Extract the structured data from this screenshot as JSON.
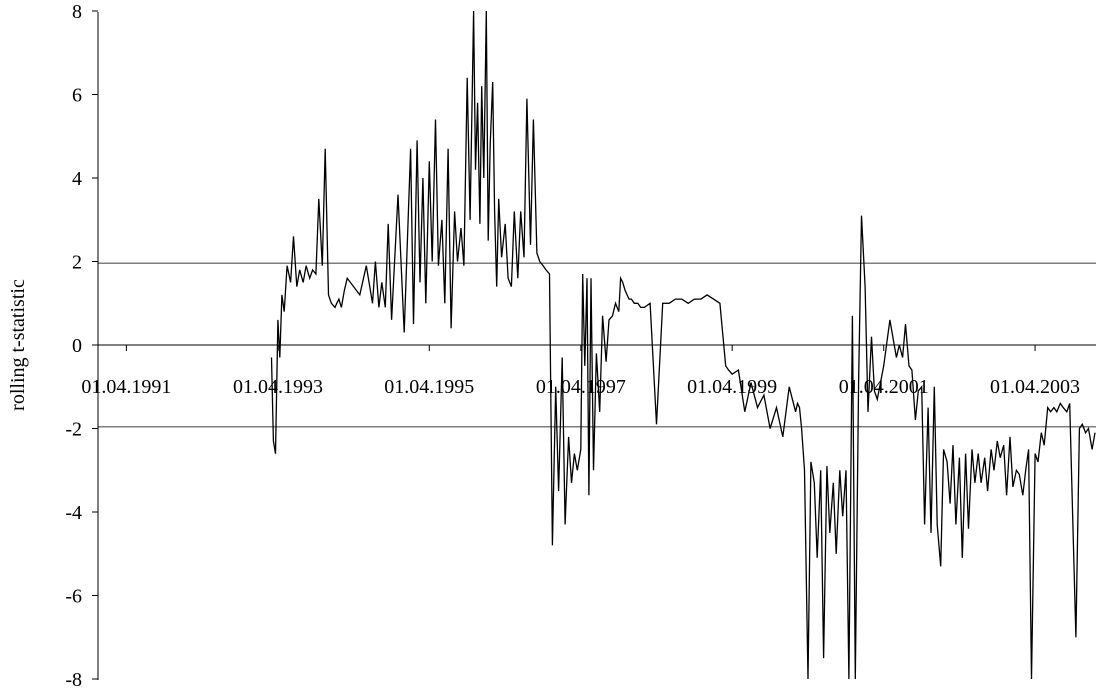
{
  "chart_data": {
    "type": "line",
    "title": "",
    "xlabel": "",
    "ylabel": "rolling t-statistic",
    "ylim": [
      -8,
      8
    ],
    "yticks": [
      "8",
      "6",
      "4",
      "2",
      "0",
      "-2",
      "-4",
      "-6",
      "-8"
    ],
    "xticks": [
      "01.04.1991",
      "01.04.1993",
      "01.04.1995",
      "01.04.1997",
      "01.04.1999",
      "01.04.2001",
      "01.04.2003"
    ],
    "xlim": [
      "1990-11-15",
      "2004-01-20"
    ],
    "reference_lines": [
      1.96,
      -1.96
    ],
    "grid": false,
    "legend": "none",
    "series": [
      {
        "color": "#000000",
        "x": [
          "1993-03-01",
          "1993-03-10",
          "1993-03-20",
          "1993-04-01",
          "1993-04-10",
          "1993-04-20",
          "1993-05-01",
          "1993-05-15",
          "1993-06-01",
          "1993-06-15",
          "1993-07-01",
          "1993-07-15",
          "1993-08-01",
          "1993-08-15",
          "1993-09-01",
          "1993-09-15",
          "1993-10-01",
          "1993-10-15",
          "1993-11-01",
          "1993-11-15",
          "1993-12-01",
          "1993-12-15",
          "1994-01-01",
          "1994-01-10",
          "1994-01-20",
          "1994-02-01",
          "1994-02-15",
          "1994-03-01",
          "1994-04-01",
          "1994-05-01",
          "1994-06-01",
          "1994-07-01",
          "1994-07-15",
          "1994-08-01",
          "1994-08-15",
          "1994-09-01",
          "1994-09-15",
          "1994-10-01",
          "1994-11-01",
          "1994-12-01",
          "1995-01-01",
          "1995-01-15",
          "1995-02-01",
          "1995-02-15",
          "1995-03-01",
          "1995-03-15",
          "1995-04-01",
          "1995-04-15",
          "1995-05-01",
          "1995-05-15",
          "1995-06-01",
          "1995-06-15",
          "1995-07-01",
          "1995-07-15",
          "1995-08-01",
          "1995-08-15",
          "1995-09-01",
          "1995-09-15",
          "1995-10-01",
          "1995-10-15",
          "1995-11-01",
          "1995-11-10",
          "1995-11-20",
          "1995-12-01",
          "1995-12-10",
          "1995-12-20",
          "1996-01-01",
          "1996-01-10",
          "1996-01-20",
          "1996-02-01",
          "1996-02-10",
          "1996-02-20",
          "1996-03-01",
          "1996-03-15",
          "1996-04-01",
          "1996-04-15",
          "1996-05-01",
          "1996-05-15",
          "1996-06-01",
          "1996-06-15",
          "1996-07-01",
          "1996-07-15",
          "1996-08-01",
          "1996-08-15",
          "1996-09-01",
          "1996-09-15",
          "1996-10-01",
          "1996-10-15",
          "1996-11-01",
          "1996-11-15",
          "1996-12-01",
          "1996-12-15",
          "1997-01-01",
          "1997-01-15",
          "1997-02-01",
          "1997-02-15",
          "1997-03-01",
          "1997-03-15",
          "1997-04-01",
          "1997-04-10",
          "1997-04-20",
          "1997-05-01",
          "1997-05-10",
          "1997-05-20",
          "1997-06-01",
          "1997-06-15",
          "1997-07-01",
          "1997-07-15",
          "1997-08-01",
          "1997-08-15",
          "1997-09-01",
          "1997-09-15",
          "1997-10-01",
          "1997-10-10",
          "1997-10-20",
          "1997-11-01",
          "1997-11-10",
          "1997-11-20",
          "1997-12-01",
          "1997-12-15",
          "1998-01-01",
          "1998-01-15",
          "1998-02-01",
          "1998-03-01",
          "1998-04-01",
          "1998-05-01",
          "1998-06-01",
          "1998-07-01",
          "1998-08-01",
          "1998-09-01",
          "1998-10-01",
          "1998-11-01",
          "1998-12-01",
          "1999-01-01",
          "1999-02-01",
          "1999-03-01",
          "1999-03-15",
          "1999-04-01",
          "1999-05-01",
          "1999-06-01",
          "1999-07-01",
          "1999-08-01",
          "1999-09-01",
          "1999-10-01",
          "1999-11-01",
          "1999-12-01",
          "2000-01-01",
          "2000-02-01",
          "2000-02-10",
          "2000-02-20",
          "2000-03-01",
          "2000-03-15",
          "2000-04-01",
          "2000-04-15",
          "2000-05-01",
          "2000-05-15",
          "2000-06-01",
          "2000-06-15",
          "2000-07-01",
          "2000-07-15",
          "2000-08-01",
          "2000-08-15",
          "2000-09-01",
          "2000-09-15",
          "2000-10-01",
          "2000-10-15",
          "2000-11-01",
          "2000-11-15",
          "2000-12-01",
          "2000-12-15",
          "2001-01-01",
          "2001-01-15",
          "2001-02-01",
          "2001-02-15",
          "2001-03-01",
          "2001-04-01",
          "2001-05-01",
          "2001-06-01",
          "2001-06-15",
          "2001-07-01",
          "2001-07-15",
          "2001-08-01",
          "2001-08-15",
          "2001-09-01",
          "2001-09-15",
          "2001-10-01",
          "2001-10-15",
          "2001-11-01",
          "2001-11-15",
          "2001-12-01",
          "2001-12-15",
          "2002-01-01",
          "2002-01-15",
          "2002-02-01",
          "2002-02-15",
          "2002-03-01",
          "2002-03-15",
          "2002-04-01",
          "2002-04-15",
          "2002-05-01",
          "2002-05-15",
          "2002-06-01",
          "2002-06-15",
          "2002-07-01",
          "2002-07-15",
          "2002-08-01",
          "2002-08-15",
          "2002-09-01",
          "2002-09-15",
          "2002-10-01",
          "2002-10-15",
          "2002-11-01",
          "2002-11-15",
          "2002-12-01",
          "2002-12-15",
          "2003-01-01",
          "2003-01-15",
          "2003-02-01",
          "2003-02-15",
          "2003-03-01",
          "2003-03-15",
          "2003-04-01",
          "2003-04-15",
          "2003-05-01",
          "2003-05-15",
          "2003-06-01",
          "2003-06-15",
          "2003-07-01",
          "2003-07-15",
          "2003-08-01",
          "2003-08-15",
          "2003-09-01",
          "2003-09-15",
          "2003-10-01",
          "2003-10-15",
          "2003-11-01",
          "2003-11-15",
          "2003-12-01",
          "2003-12-15",
          "2004-01-01",
          "2004-01-15"
        ],
        "y": [
          -0.3,
          -2.3,
          -2.6,
          0.6,
          -0.3,
          1.2,
          0.8,
          1.9,
          1.5,
          2.6,
          1.4,
          1.8,
          1.5,
          1.9,
          1.6,
          1.8,
          1.7,
          3.5,
          1.9,
          4.7,
          1.2,
          1.0,
          0.9,
          1.0,
          1.1,
          0.9,
          1.3,
          1.6,
          1.4,
          1.2,
          1.9,
          1.0,
          2.0,
          0.9,
          1.5,
          0.9,
          2.9,
          0.6,
          3.6,
          0.3,
          4.7,
          0.5,
          4.9,
          1.5,
          4.0,
          1.0,
          4.4,
          2.0,
          5.4,
          1.9,
          3.0,
          1.0,
          4.7,
          0.4,
          3.2,
          2.0,
          2.8,
          1.9,
          6.4,
          3.0,
          8.0,
          4.2,
          5.8,
          2.9,
          6.2,
          4.0,
          8.0,
          2.5,
          4.8,
          6.3,
          3.2,
          1.4,
          3.5,
          2.1,
          2.9,
          1.6,
          1.4,
          3.2,
          1.6,
          3.2,
          2.1,
          5.9,
          2.4,
          5.4,
          2.2,
          2.0,
          1.9,
          1.8,
          1.7,
          -4.8,
          -1.0,
          -3.5,
          -0.3,
          -4.3,
          -2.2,
          -3.3,
          -2.6,
          -3.0,
          -2.5,
          1.7,
          -0.5,
          1.6,
          -3.6,
          1.6,
          -3.0,
          -0.2,
          -1.6,
          0.7,
          -0.4,
          0.6,
          0.7,
          1.0,
          0.8,
          1.6,
          1.5,
          1.3,
          1.2,
          1.1,
          1.1,
          1.0,
          1.0,
          0.9,
          0.9,
          1.0,
          -1.9,
          1.0,
          1.0,
          1.1,
          1.1,
          1.0,
          1.1,
          1.1,
          1.2,
          1.1,
          1.0,
          -0.5,
          -0.6,
          -0.7,
          -0.6,
          -1.6,
          -0.9,
          -1.5,
          -1.2,
          -2.0,
          -1.5,
          -2.2,
          -1.0,
          -1.6,
          -1.4,
          -1.5,
          -2.0,
          -3.0,
          -8.0,
          -2.8,
          -3.3,
          -5.1,
          -3.0,
          -7.5,
          -2.9,
          -4.5,
          -3.3,
          -5.0,
          -3.0,
          -4.1,
          -3.0,
          -8.0,
          0.7,
          -8.0,
          -0.9,
          3.1,
          1.4,
          -1.6,
          0.2,
          -1.1,
          -1.3,
          -0.5,
          0.6,
          -0.3,
          0.0,
          -0.3,
          0.5,
          -0.5,
          -0.6,
          -1.8,
          -1.1,
          -1.0,
          -4.3,
          -1.5,
          -4.5,
          -1.0,
          -4.3,
          -5.3,
          -2.5,
          -2.8,
          -3.8,
          -2.4,
          -4.3,
          -2.7,
          -5.1,
          -2.6,
          -4.4,
          -2.5,
          -3.3,
          -2.6,
          -3.3,
          -2.7,
          -3.5,
          -2.5,
          -3.0,
          -2.3,
          -2.7,
          -2.4,
          -3.6,
          -2.2,
          -3.4,
          -3.0,
          -3.1,
          -3.6,
          -3.0,
          -2.5,
          -8.0,
          -2.6,
          -2.8,
          -2.1,
          -2.4,
          -1.5,
          -1.6,
          -1.5,
          -1.6,
          -1.4,
          -1.5,
          -1.6,
          -1.4,
          -4.4,
          -7.0,
          -2.0,
          -1.9,
          -2.1,
          -2.0,
          -2.5,
          -2.1
        ]
      }
    ]
  }
}
